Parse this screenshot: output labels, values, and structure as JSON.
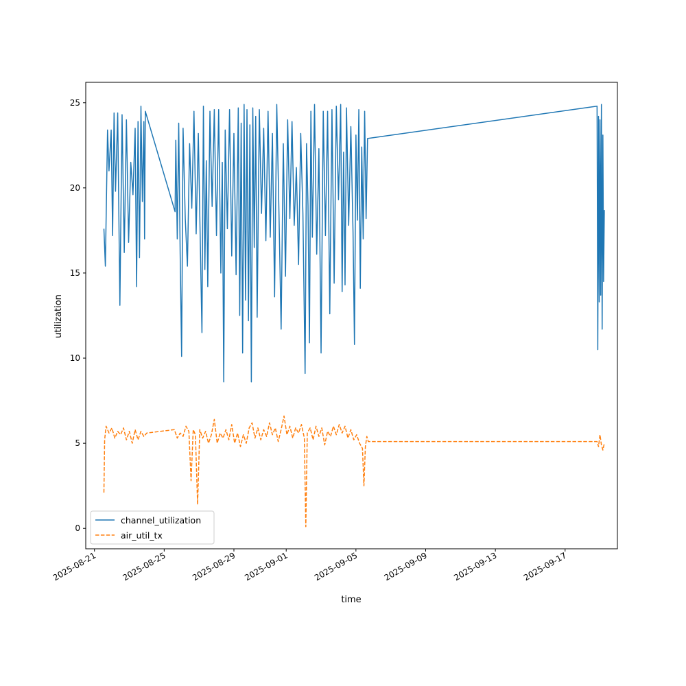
{
  "chart_data": {
    "type": "line",
    "title": "",
    "xlabel": "time",
    "ylabel": "utilization",
    "grid": false,
    "legend_position": "lower-left",
    "xlim": [
      "2025-08-20T12:00",
      "2025-09-20T00:00"
    ],
    "ylim": [
      -1.2,
      26.2
    ],
    "x_ticks": [
      "2025-08-21",
      "2025-08-25",
      "2025-08-29",
      "2025-09-01",
      "2025-09-05",
      "2025-09-09",
      "2025-09-13",
      "2025-09-17"
    ],
    "y_ticks": [
      0,
      5,
      10,
      15,
      20,
      25
    ],
    "series": [
      {
        "name": "channel_utilization",
        "color": "#1f77b4",
        "dash": "solid",
        "points": [
          [
            "2025-08-21T13:00",
            17.6
          ],
          [
            "2025-08-21T15:00",
            15.4
          ],
          [
            "2025-08-21T18:00",
            23.4
          ],
          [
            "2025-08-21T20:00",
            21.0
          ],
          [
            "2025-08-21T23:00",
            23.4
          ],
          [
            "2025-08-22T01:00",
            17.2
          ],
          [
            "2025-08-22T03:00",
            24.4
          ],
          [
            "2025-08-22T05:00",
            19.8
          ],
          [
            "2025-08-22T08:00",
            24.4
          ],
          [
            "2025-08-22T11:00",
            13.1
          ],
          [
            "2025-08-22T14:00",
            24.3
          ],
          [
            "2025-08-22T17:00",
            16.2
          ],
          [
            "2025-08-22T20:00",
            24.0
          ],
          [
            "2025-08-22T23:00",
            16.8
          ],
          [
            "2025-08-23T02:00",
            21.5
          ],
          [
            "2025-08-23T05:00",
            19.6
          ],
          [
            "2025-08-23T08:00",
            23.5
          ],
          [
            "2025-08-23T10:00",
            14.2
          ],
          [
            "2025-08-23T12:00",
            23.9
          ],
          [
            "2025-08-23T14:00",
            15.9
          ],
          [
            "2025-08-23T16:00",
            24.8
          ],
          [
            "2025-08-23T18:00",
            19.2
          ],
          [
            "2025-08-23T20:00",
            23.9
          ],
          [
            "2025-08-23T21:00",
            17.0
          ],
          [
            "2025-08-23T22:00",
            24.5
          ],
          [
            "2025-08-25T15:00",
            18.6
          ],
          [
            "2025-08-25T16:00",
            22.8
          ],
          [
            "2025-08-25T18:00",
            17.0
          ],
          [
            "2025-08-25T20:00",
            23.8
          ],
          [
            "2025-08-25T22:00",
            16.1
          ],
          [
            "2025-08-26T00:00",
            10.1
          ],
          [
            "2025-08-26T02:00",
            23.5
          ],
          [
            "2025-08-26T05:00",
            18.2
          ],
          [
            "2025-08-26T08:00",
            15.4
          ],
          [
            "2025-08-26T11:00",
            22.6
          ],
          [
            "2025-08-26T14:00",
            18.8
          ],
          [
            "2025-08-26T17:00",
            24.5
          ],
          [
            "2025-08-26T20:00",
            17.3
          ],
          [
            "2025-08-26T23:00",
            23.2
          ],
          [
            "2025-08-27T02:00",
            16.1
          ],
          [
            "2025-08-27T04:00",
            11.5
          ],
          [
            "2025-08-27T06:00",
            24.8
          ],
          [
            "2025-08-27T08:00",
            15.2
          ],
          [
            "2025-08-27T10:00",
            21.6
          ],
          [
            "2025-08-27T12:00",
            14.2
          ],
          [
            "2025-08-27T15:00",
            24.5
          ],
          [
            "2025-08-27T18:00",
            18.9
          ],
          [
            "2025-08-27T21:00",
            24.6
          ],
          [
            "2025-08-28T00:00",
            17.2
          ],
          [
            "2025-08-28T03:00",
            24.6
          ],
          [
            "2025-08-28T06:00",
            15.0
          ],
          [
            "2025-08-28T08:00",
            21.5
          ],
          [
            "2025-08-28T10:00",
            8.6
          ],
          [
            "2025-08-28T12:00",
            23.4
          ],
          [
            "2025-08-28T15:00",
            17.6
          ],
          [
            "2025-08-28T18:00",
            24.6
          ],
          [
            "2025-08-28T21:00",
            16.0
          ],
          [
            "2025-08-29T00:00",
            23.2
          ],
          [
            "2025-08-29T03:00",
            14.9
          ],
          [
            "2025-08-29T06:00",
            24.7
          ],
          [
            "2025-08-29T08:00",
            12.5
          ],
          [
            "2025-08-29T10:00",
            23.8
          ],
          [
            "2025-08-29T12:00",
            10.3
          ],
          [
            "2025-08-29T14:00",
            24.9
          ],
          [
            "2025-08-29T16:00",
            13.4
          ],
          [
            "2025-08-29T18:00",
            24.6
          ],
          [
            "2025-08-29T20:00",
            12.2
          ],
          [
            "2025-08-29T22:00",
            23.7
          ],
          [
            "2025-08-30T00:00",
            8.6
          ],
          [
            "2025-08-30T02:00",
            24.7
          ],
          [
            "2025-08-30T04:00",
            16.5
          ],
          [
            "2025-08-30T06:00",
            24.2
          ],
          [
            "2025-08-30T08:00",
            12.4
          ],
          [
            "2025-08-30T11:00",
            24.6
          ],
          [
            "2025-08-30T14:00",
            18.5
          ],
          [
            "2025-08-30T17:00",
            23.5
          ],
          [
            "2025-08-30T20:00",
            16.9
          ],
          [
            "2025-08-30T23:00",
            24.5
          ],
          [
            "2025-08-31T02:00",
            17.1
          ],
          [
            "2025-08-31T05:00",
            23.2
          ],
          [
            "2025-08-31T08:00",
            13.6
          ],
          [
            "2025-08-31T11:00",
            24.9
          ],
          [
            "2025-08-31T14:00",
            18.6
          ],
          [
            "2025-08-31T17:00",
            11.7
          ],
          [
            "2025-08-31T20:00",
            22.6
          ],
          [
            "2025-08-31T23:00",
            14.8
          ],
          [
            "2025-09-01T02:00",
            24.0
          ],
          [
            "2025-09-01T05:00",
            18.2
          ],
          [
            "2025-09-01T08:00",
            23.9
          ],
          [
            "2025-09-01T11:00",
            17.8
          ],
          [
            "2025-09-01T14:00",
            21.2
          ],
          [
            "2025-09-01T17:00",
            15.5
          ],
          [
            "2025-09-01T20:00",
            23.2
          ],
          [
            "2025-09-01T23:00",
            18.5
          ],
          [
            "2025-09-02T02:00",
            9.1
          ],
          [
            "2025-09-02T04:00",
            22.6
          ],
          [
            "2025-09-02T06:00",
            19.0
          ],
          [
            "2025-09-02T08:00",
            10.9
          ],
          [
            "2025-09-02T10:00",
            24.5
          ],
          [
            "2025-09-02T12:00",
            17.1
          ],
          [
            "2025-09-02T15:00",
            24.9
          ],
          [
            "2025-09-02T18:00",
            16.1
          ],
          [
            "2025-09-02T21:00",
            22.3
          ],
          [
            "2025-09-03T00:00",
            10.3
          ],
          [
            "2025-09-03T03:00",
            24.5
          ],
          [
            "2025-09-03T06:00",
            17.2
          ],
          [
            "2025-09-03T09:00",
            24.5
          ],
          [
            "2025-09-03T12:00",
            12.6
          ],
          [
            "2025-09-03T15:00",
            24.6
          ],
          [
            "2025-09-03T18:00",
            14.4
          ],
          [
            "2025-09-03T21:00",
            24.8
          ],
          [
            "2025-09-04T00:00",
            19.3
          ],
          [
            "2025-09-04T03:00",
            24.9
          ],
          [
            "2025-09-04T05:00",
            13.9
          ],
          [
            "2025-09-04T07:00",
            22.1
          ],
          [
            "2025-09-04T09:00",
            14.3
          ],
          [
            "2025-09-04T11:00",
            24.7
          ],
          [
            "2025-09-04T14:00",
            17.8
          ],
          [
            "2025-09-04T17:00",
            23.6
          ],
          [
            "2025-09-04T20:00",
            17.4
          ],
          [
            "2025-09-04T22:00",
            10.8
          ],
          [
            "2025-09-05T00:00",
            23.1
          ],
          [
            "2025-09-05T02:00",
            18.1
          ],
          [
            "2025-09-05T04:00",
            24.6
          ],
          [
            "2025-09-05T06:00",
            14.1
          ],
          [
            "2025-09-05T08:00",
            22.4
          ],
          [
            "2025-09-05T10:00",
            17.0
          ],
          [
            "2025-09-05T12:00",
            24.5
          ],
          [
            "2025-09-05T14:00",
            18.2
          ],
          [
            "2025-09-05T16:00",
            22.9
          ],
          [
            "2025-09-18T20:00",
            24.8
          ],
          [
            "2025-09-18T21:00",
            10.5
          ],
          [
            "2025-09-18T22:00",
            24.2
          ],
          [
            "2025-09-18T23:00",
            13.3
          ],
          [
            "2025-09-19T00:00",
            24.0
          ],
          [
            "2025-09-19T01:00",
            13.7
          ],
          [
            "2025-09-19T02:00",
            24.9
          ],
          [
            "2025-09-19T03:00",
            11.7
          ],
          [
            "2025-09-19T04:00",
            23.1
          ],
          [
            "2025-09-19T05:00",
            14.5
          ],
          [
            "2025-09-19T06:00",
            18.7
          ]
        ]
      },
      {
        "name": "air_util_tx",
        "color": "#ff7f0e",
        "dash": "dashed",
        "points": [
          [
            "2025-08-21T13:00",
            2.1
          ],
          [
            "2025-08-21T14:00",
            5.2
          ],
          [
            "2025-08-21T16:00",
            6.0
          ],
          [
            "2025-08-21T20:00",
            5.6
          ],
          [
            "2025-08-22T00:00",
            5.9
          ],
          [
            "2025-08-22T04:00",
            5.3
          ],
          [
            "2025-08-22T08:00",
            5.7
          ],
          [
            "2025-08-22T12:00",
            5.5
          ],
          [
            "2025-08-22T16:00",
            5.9
          ],
          [
            "2025-08-22T20:00",
            5.2
          ],
          [
            "2025-08-23T00:00",
            5.7
          ],
          [
            "2025-08-23T04:00",
            5.0
          ],
          [
            "2025-08-23T08:00",
            5.8
          ],
          [
            "2025-08-23T12:00",
            5.2
          ],
          [
            "2025-08-23T16:00",
            5.7
          ],
          [
            "2025-08-23T20:00",
            5.4
          ],
          [
            "2025-08-24T00:00",
            5.6
          ],
          [
            "2025-08-25T14:00",
            5.8
          ],
          [
            "2025-08-25T18:00",
            5.3
          ],
          [
            "2025-08-25T22:00",
            5.6
          ],
          [
            "2025-08-26T02:00",
            5.4
          ],
          [
            "2025-08-26T06:00",
            6.0
          ],
          [
            "2025-08-26T10:00",
            5.7
          ],
          [
            "2025-08-26T13:00",
            2.8
          ],
          [
            "2025-08-26T16:00",
            5.8
          ],
          [
            "2025-08-26T19:00",
            5.5
          ],
          [
            "2025-08-26T22:00",
            1.4
          ],
          [
            "2025-08-27T01:00",
            5.8
          ],
          [
            "2025-08-27T05:00",
            5.3
          ],
          [
            "2025-08-27T09:00",
            5.7
          ],
          [
            "2025-08-27T13:00",
            5.0
          ],
          [
            "2025-08-27T17:00",
            5.5
          ],
          [
            "2025-08-27T21:00",
            6.4
          ],
          [
            "2025-08-28T01:00",
            5.0
          ],
          [
            "2025-08-28T05:00",
            5.6
          ],
          [
            "2025-08-28T09:00",
            5.3
          ],
          [
            "2025-08-28T13:00",
            5.8
          ],
          [
            "2025-08-28T17:00",
            5.2
          ],
          [
            "2025-08-28T21:00",
            6.1
          ],
          [
            "2025-08-29T01:00",
            5.0
          ],
          [
            "2025-08-29T05:00",
            5.6
          ],
          [
            "2025-08-29T09:00",
            4.8
          ],
          [
            "2025-08-29T13:00",
            5.5
          ],
          [
            "2025-08-29T17:00",
            5.0
          ],
          [
            "2025-08-29T21:00",
            5.9
          ],
          [
            "2025-08-30T01:00",
            6.2
          ],
          [
            "2025-08-30T05:00",
            5.3
          ],
          [
            "2025-08-30T09:00",
            5.9
          ],
          [
            "2025-08-30T13:00",
            5.2
          ],
          [
            "2025-08-30T17:00",
            5.8
          ],
          [
            "2025-08-30T21:00",
            5.4
          ],
          [
            "2025-08-31T01:00",
            6.2
          ],
          [
            "2025-08-31T05:00",
            5.5
          ],
          [
            "2025-08-31T09:00",
            5.9
          ],
          [
            "2025-08-31T13:00",
            5.1
          ],
          [
            "2025-08-31T17:00",
            5.8
          ],
          [
            "2025-08-31T21:00",
            6.6
          ],
          [
            "2025-09-01T01:00",
            5.5
          ],
          [
            "2025-09-01T05:00",
            6.0
          ],
          [
            "2025-09-01T09:00",
            5.3
          ],
          [
            "2025-09-01T13:00",
            5.9
          ],
          [
            "2025-09-01T17:00",
            5.6
          ],
          [
            "2025-09-01T21:00",
            6.1
          ],
          [
            "2025-09-02T01:00",
            5.3
          ],
          [
            "2025-09-02T03:00",
            0.1
          ],
          [
            "2025-09-02T05:00",
            5.6
          ],
          [
            "2025-09-02T09:00",
            5.9
          ],
          [
            "2025-09-02T13:00",
            5.2
          ],
          [
            "2025-09-02T17:00",
            6.0
          ],
          [
            "2025-09-02T21:00",
            5.4
          ],
          [
            "2025-09-03T01:00",
            5.9
          ],
          [
            "2025-09-03T05:00",
            4.9
          ],
          [
            "2025-09-03T09:00",
            5.7
          ],
          [
            "2025-09-03T13:00",
            5.4
          ],
          [
            "2025-09-03T17:00",
            6.0
          ],
          [
            "2025-09-03T21:00",
            5.5
          ],
          [
            "2025-09-04T01:00",
            6.1
          ],
          [
            "2025-09-04T05:00",
            5.6
          ],
          [
            "2025-09-04T09:00",
            6.0
          ],
          [
            "2025-09-04T13:00",
            5.3
          ],
          [
            "2025-09-04T17:00",
            5.8
          ],
          [
            "2025-09-04T21:00",
            5.2
          ],
          [
            "2025-09-05T01:00",
            5.5
          ],
          [
            "2025-09-05T05:00",
            5.0
          ],
          [
            "2025-09-05T09:00",
            4.7
          ],
          [
            "2025-09-05T11:00",
            2.5
          ],
          [
            "2025-09-05T13:00",
            4.8
          ],
          [
            "2025-09-05T15:00",
            5.4
          ],
          [
            "2025-09-05T17:00",
            5.1
          ],
          [
            "2025-09-18T20:00",
            5.1
          ],
          [
            "2025-09-18T22:00",
            4.8
          ],
          [
            "2025-09-19T00:00",
            5.5
          ],
          [
            "2025-09-19T02:00",
            4.9
          ],
          [
            "2025-09-19T04:00",
            4.6
          ],
          [
            "2025-09-19T06:00",
            5.0
          ]
        ]
      }
    ]
  }
}
